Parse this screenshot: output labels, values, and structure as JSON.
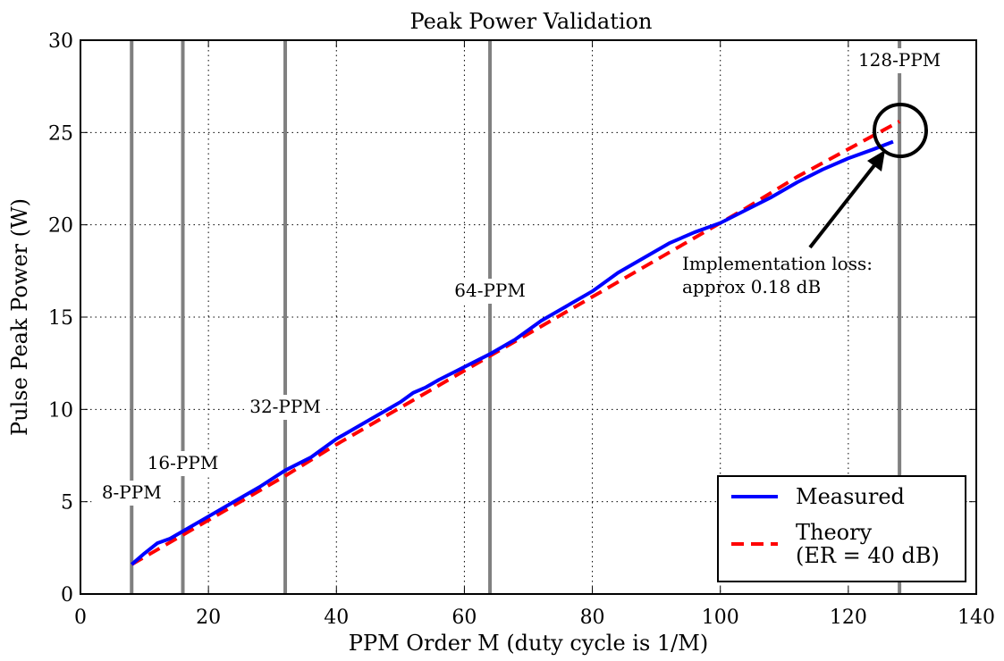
{
  "chart_data": {
    "type": "line",
    "title": "Peak Power Validation",
    "x_label": "PPM Order M (duty cycle is 1/M)",
    "y_label": "Pulse Peak Power (W)",
    "xlim": [
      0,
      140
    ],
    "xticks": [
      0,
      20,
      40,
      60,
      80,
      100,
      120,
      140
    ],
    "ylim": [
      0,
      30
    ],
    "yticks": [
      0,
      5,
      10,
      15,
      20,
      25,
      30
    ],
    "grid": true,
    "legend": "lower right",
    "series": [
      {
        "name": "Measured",
        "color": "#0000ff",
        "style": "solid",
        "x": [
          8,
          10,
          12,
          14,
          16,
          20,
          24,
          28,
          32,
          36,
          40,
          44,
          48,
          50,
          52,
          54,
          56,
          60,
          64,
          68,
          72,
          76,
          80,
          84,
          88,
          92,
          96,
          100,
          104,
          108,
          112,
          116,
          120,
          124,
          127
        ],
        "values": [
          1.6,
          2.2,
          2.75,
          3.0,
          3.4,
          4.2,
          5.0,
          5.8,
          6.7,
          7.4,
          8.4,
          9.2,
          10.0,
          10.4,
          10.9,
          11.2,
          11.6,
          12.3,
          13.0,
          13.8,
          14.8,
          15.6,
          16.4,
          17.4,
          18.2,
          19.0,
          19.6,
          20.1,
          20.8,
          21.5,
          22.3,
          23.0,
          23.6,
          24.1,
          24.5
        ]
      },
      {
        "name": "Theory\n(ER = 40 dB)",
        "color": "#ff0000",
        "style": "dashed",
        "x": [
          8,
          16,
          24,
          32,
          40,
          48,
          56,
          64,
          72,
          80,
          88,
          96,
          104,
          112,
          120,
          128
        ],
        "values": [
          1.6,
          3.2,
          4.8,
          6.4,
          8.1,
          9.7,
          11.3,
          12.9,
          14.5,
          16.1,
          17.7,
          19.3,
          20.9,
          22.6,
          24.1,
          25.6
        ]
      }
    ],
    "vlines": [
      {
        "x": 8,
        "label": "8-PPM"
      },
      {
        "x": 16,
        "label": "16-PPM"
      },
      {
        "x": 32,
        "label": "32-PPM"
      },
      {
        "x": 64,
        "label": "64-PPM"
      },
      {
        "x": 128,
        "label": "128-PPM"
      }
    ],
    "annotation": [
      "Implementation loss:",
      "approx 0.18 dB"
    ]
  }
}
